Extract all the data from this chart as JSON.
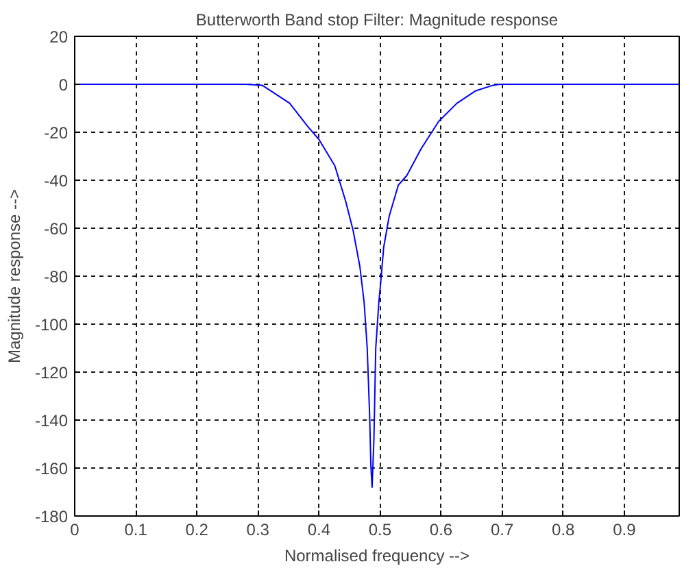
{
  "chart_data": {
    "type": "line",
    "title": "Butterworth Band stop Filter: Magnitude response",
    "xlabel": "Normalised frequency -->",
    "ylabel": "Magnitude response -->",
    "series": [
      {
        "color": "#0000ff",
        "x": [
          0,
          0.28,
          0.307,
          0.352,
          0.381,
          0.4,
          0.426,
          0.444,
          0.456,
          0.467,
          0.474,
          0.479,
          0.483,
          0.485,
          0.487,
          0.49,
          0.493,
          0.498,
          0.501,
          0.506,
          0.515,
          0.53,
          0.544,
          0.567,
          0.596,
          0.626,
          0.656,
          0.685,
          0.696,
          0.99
        ],
        "values": [
          0,
          0,
          -0.4,
          -7.9,
          -17.4,
          -23,
          -34,
          -49,
          -61,
          -76,
          -91,
          -110,
          -138,
          -159,
          -168,
          -148,
          -110,
          -91,
          -83,
          -68,
          -55,
          -42,
          -38,
          -27,
          -15.5,
          -7.9,
          -2.8,
          -0.4,
          0,
          0
        ]
      }
    ],
    "xlim": [
      0,
      0.99
    ],
    "ylim": [
      -180,
      20
    ],
    "xticks": [
      0,
      0.1,
      0.2,
      0.3,
      0.4,
      0.5,
      0.6,
      0.7,
      0.8,
      0.9
    ],
    "yticks": [
      -180,
      -160,
      -140,
      -120,
      -100,
      -80,
      -60,
      -40,
      -20,
      0,
      20
    ],
    "grid": true,
    "line_style": "solid",
    "marker": "none"
  }
}
